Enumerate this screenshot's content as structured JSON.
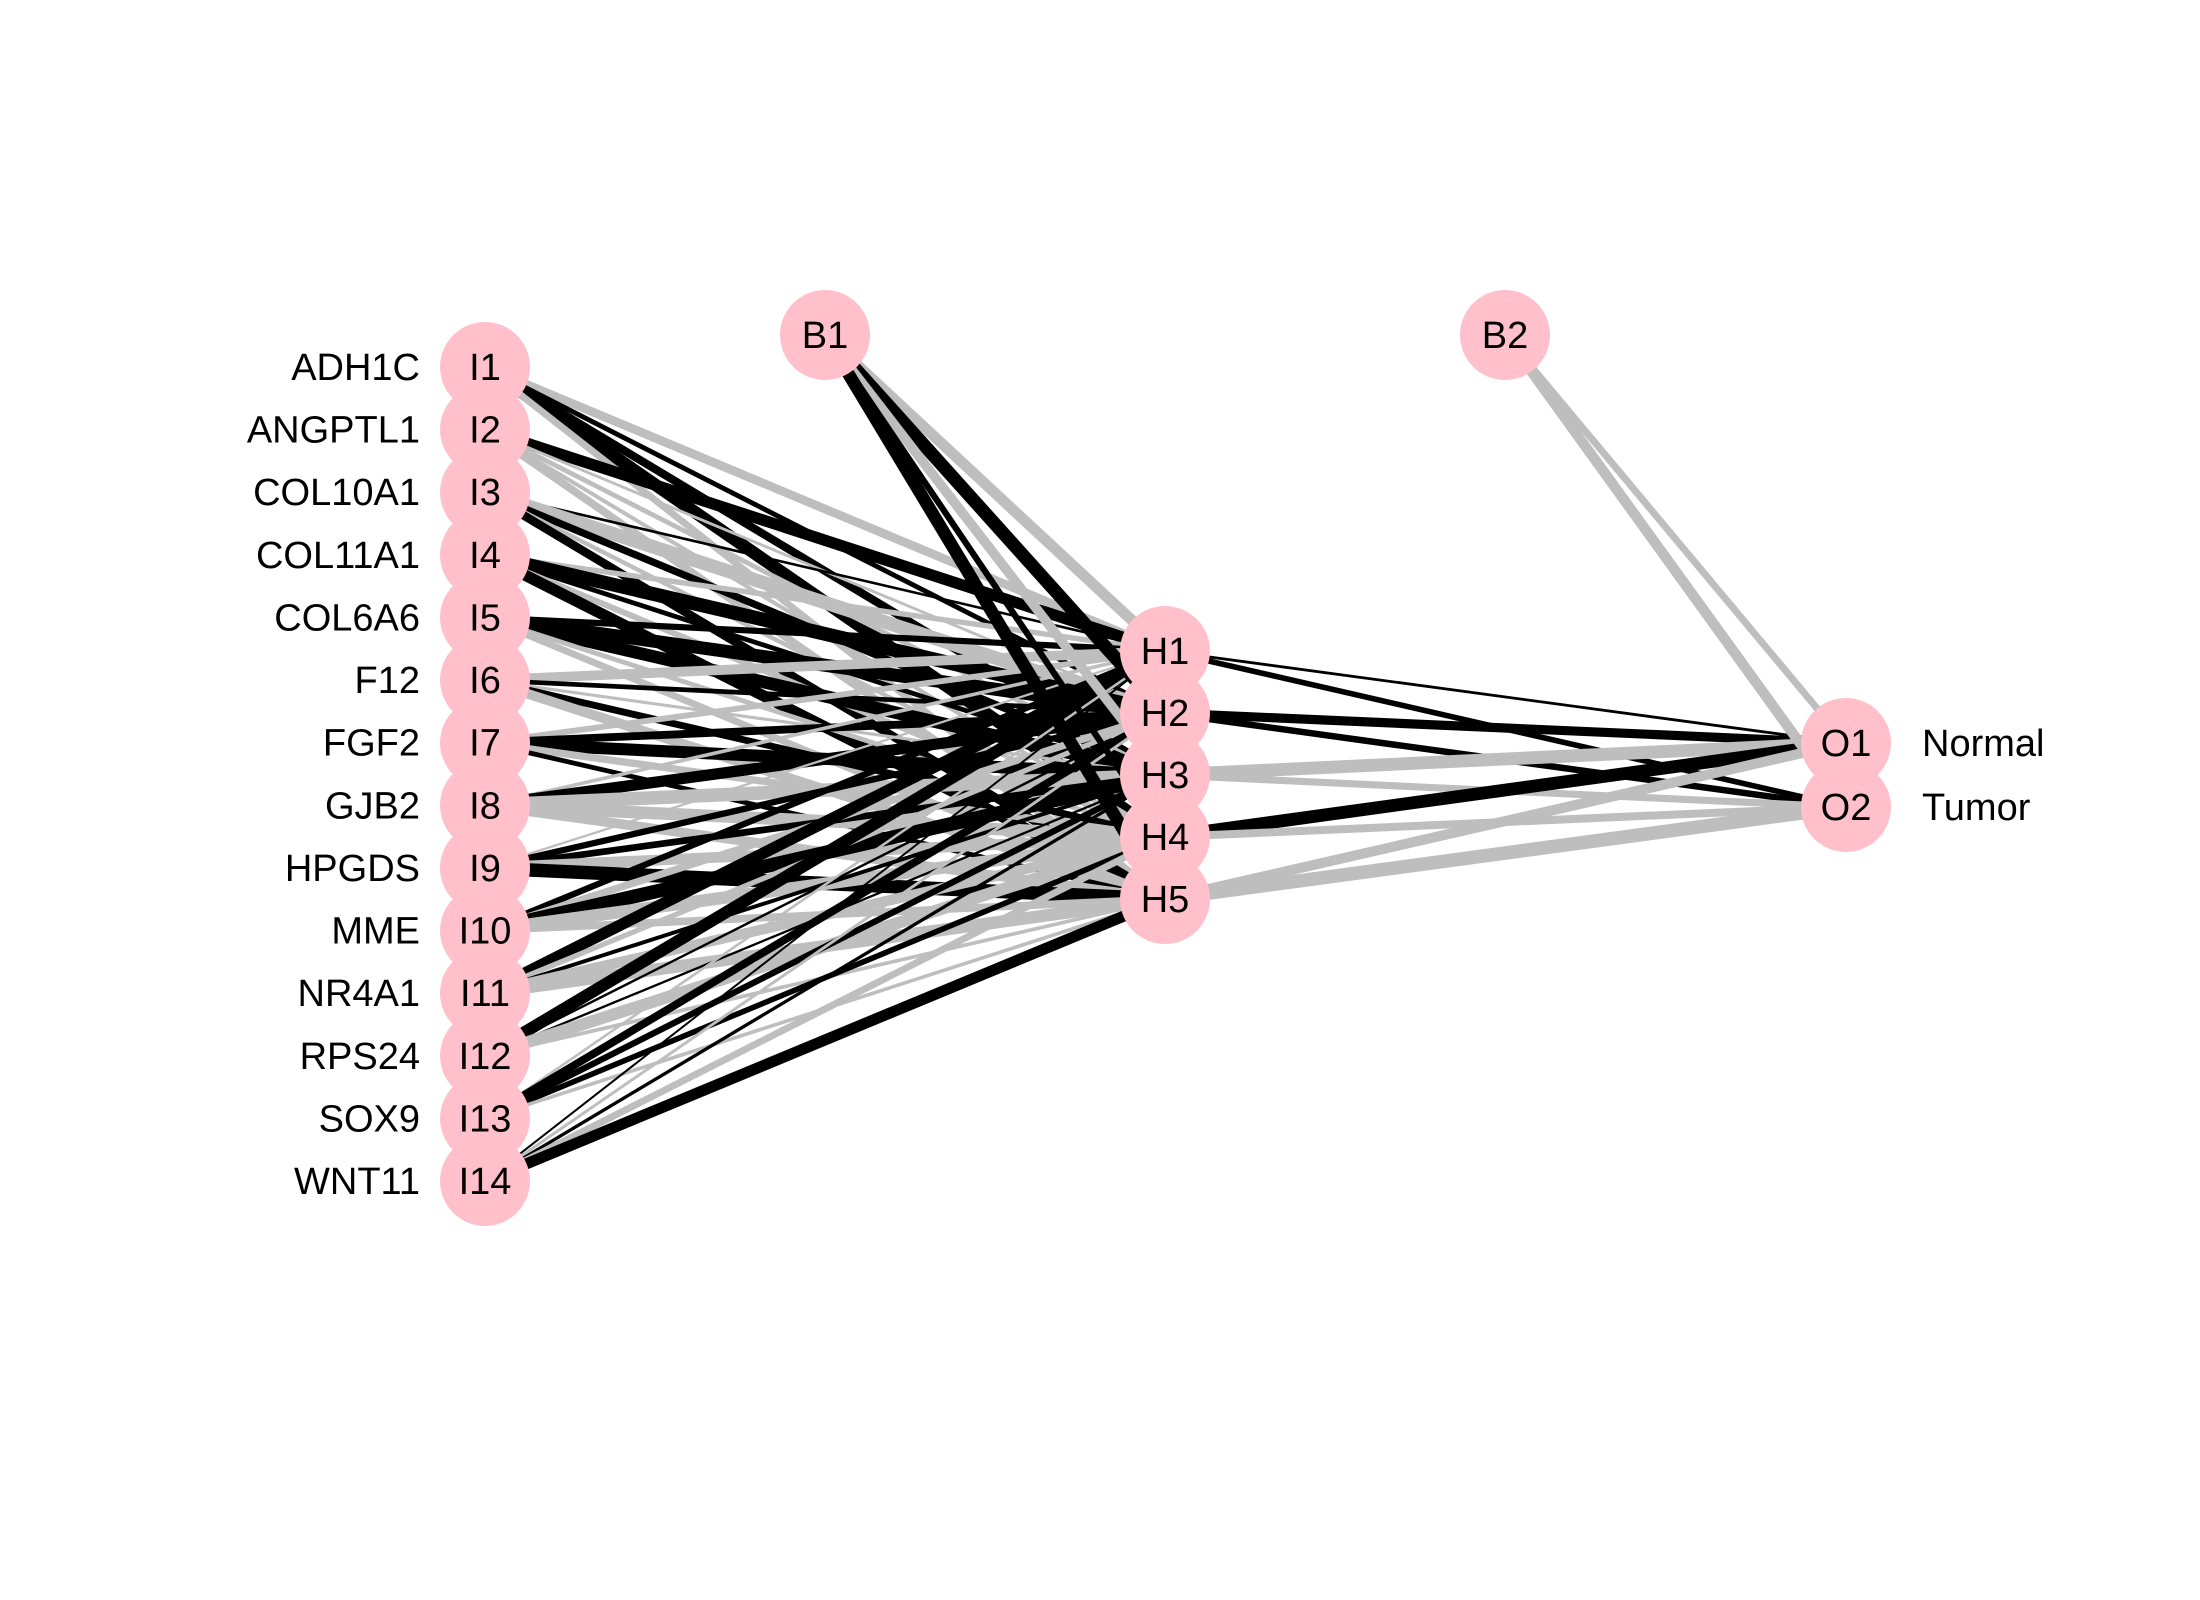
{
  "diagram": {
    "type": "neural-network",
    "colors": {
      "node_fill": "#ffc0cb",
      "positive_weight": "#000000",
      "negative_weight": "#bebebe",
      "background": "#ffffff"
    },
    "input_layer": [
      {
        "id": "I1",
        "variable": "ADH1C"
      },
      {
        "id": "I2",
        "variable": "ANGPTL1"
      },
      {
        "id": "I3",
        "variable": "COL10A1"
      },
      {
        "id": "I4",
        "variable": "COL11A1"
      },
      {
        "id": "I5",
        "variable": "COL6A6"
      },
      {
        "id": "I6",
        "variable": "F12"
      },
      {
        "id": "I7",
        "variable": "FGF2"
      },
      {
        "id": "I8",
        "variable": "GJB2"
      },
      {
        "id": "I9",
        "variable": "HPGDS"
      },
      {
        "id": "I10",
        "variable": "MME"
      },
      {
        "id": "I11",
        "variable": "NR4A1"
      },
      {
        "id": "I12",
        "variable": "RPS24"
      },
      {
        "id": "I13",
        "variable": "SOX9"
      },
      {
        "id": "I14",
        "variable": "WNT11"
      }
    ],
    "hidden_layer": [
      {
        "id": "H1"
      },
      {
        "id": "H2"
      },
      {
        "id": "H3"
      },
      {
        "id": "H4"
      },
      {
        "id": "H5"
      }
    ],
    "output_layer": [
      {
        "id": "O1",
        "variable": "Normal"
      },
      {
        "id": "O2",
        "variable": "Tumor"
      }
    ],
    "bias_nodes": [
      {
        "id": "B1",
        "connects_to": "hidden"
      },
      {
        "id": "B2",
        "connects_to": "output"
      }
    ]
  }
}
